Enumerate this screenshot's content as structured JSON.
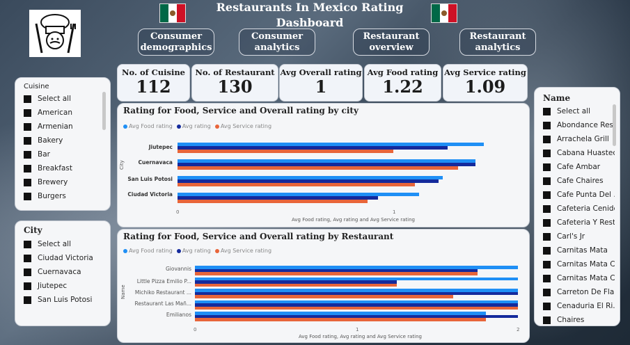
{
  "header": {
    "title": "Restaurants In Mexico Rating Dashboard"
  },
  "colors": {
    "food": "#1f8ff5",
    "overall": "#142a9c",
    "service": "#e8653a"
  },
  "nav": [
    {
      "label": "Consumer demographics"
    },
    {
      "label": "Consumer analytics"
    },
    {
      "label": "Restaurant overview"
    },
    {
      "label": "Restaurant analytics"
    }
  ],
  "kpis": [
    {
      "label": "No. of Cuisine",
      "value": "112"
    },
    {
      "label": "No. of Restaurant",
      "value": "130"
    },
    {
      "label": "Avg Overall rating",
      "value": "1"
    },
    {
      "label": "Avg Food rating",
      "value": "1.22"
    },
    {
      "label": "Avg Service rating",
      "value": "1.09"
    }
  ],
  "cuisine_slicer": {
    "title": "Cuisine",
    "items": [
      "Select all",
      "American",
      "Armenian",
      "Bakery",
      "Bar",
      "Breakfast",
      "Brewery",
      "Burgers"
    ]
  },
  "city_slicer": {
    "title": "City",
    "items": [
      "Select all",
      "Ciudad Victoria",
      "Cuernavaca",
      "Jiutepec",
      "San Luis Potosi"
    ]
  },
  "name_slicer": {
    "title": "Name",
    "items": [
      "Select all",
      "Abondance Res...",
      "Arrachela Grill",
      "Cabana Huasteca",
      "Cafe Ambar",
      "Cafe Chaires",
      "Cafe Punta Del ...",
      "Cafeteria Cenidet",
      "Cafeteria Y Rest...",
      "Carl's Jr",
      "Carnitas Mata",
      "Carnitas Mata C...",
      "Carnitas Mata C...",
      "Carreton De Fla...",
      "Cenaduria El Ri...",
      "Chaires"
    ]
  },
  "chart_data": [
    {
      "type": "bar",
      "orientation": "horizontal",
      "title": "Rating for Food, Service and Overall rating by city",
      "legend": [
        "Avg Food rating",
        "Avg rating",
        "Avg Service rating"
      ],
      "ylabel": "City",
      "xlabel": "Avg Food rating, Avg rating and Avg Service rating",
      "xlim": [
        0,
        1.5
      ],
      "xticks": [
        "0",
        "1"
      ],
      "categories": [
        "Jiutepec",
        "Cuernavaca",
        "San Luis Potosi",
        "Ciudad Victoria"
      ],
      "series": [
        {
          "name": "Avg Food rating",
          "values": [
            1.42,
            1.38,
            1.23,
            1.12
          ]
        },
        {
          "name": "Avg rating",
          "values": [
            1.25,
            1.38,
            1.21,
            0.93
          ]
        },
        {
          "name": "Avg Service rating",
          "values": [
            1.0,
            1.3,
            1.1,
            0.88
          ]
        }
      ]
    },
    {
      "type": "bar",
      "orientation": "horizontal",
      "title": "Rating for Food, Service and Overall rating by Restaurant",
      "legend": [
        "Avg Food rating",
        "Avg rating",
        "Avg Service rating"
      ],
      "ylabel": "Name",
      "xlabel": "Avg Food rating, Avg rating and Avg Service rating",
      "xlim": [
        0,
        2
      ],
      "xticks": [
        "0",
        "1",
        "2"
      ],
      "categories": [
        "Giovannis",
        "Little Pizza Emilio P...",
        "Michiko Restaurant ...",
        "Restaurant Las Mañ...",
        "Emilianos"
      ],
      "series": [
        {
          "name": "Avg Food rating",
          "values": [
            2,
            2,
            2,
            2,
            1.8
          ]
        },
        {
          "name": "Avg rating",
          "values": [
            1.75,
            1.25,
            2,
            2,
            2
          ]
        },
        {
          "name": "Avg Service rating",
          "values": [
            1.75,
            1.25,
            1.6,
            2,
            1.8
          ]
        }
      ]
    }
  ]
}
